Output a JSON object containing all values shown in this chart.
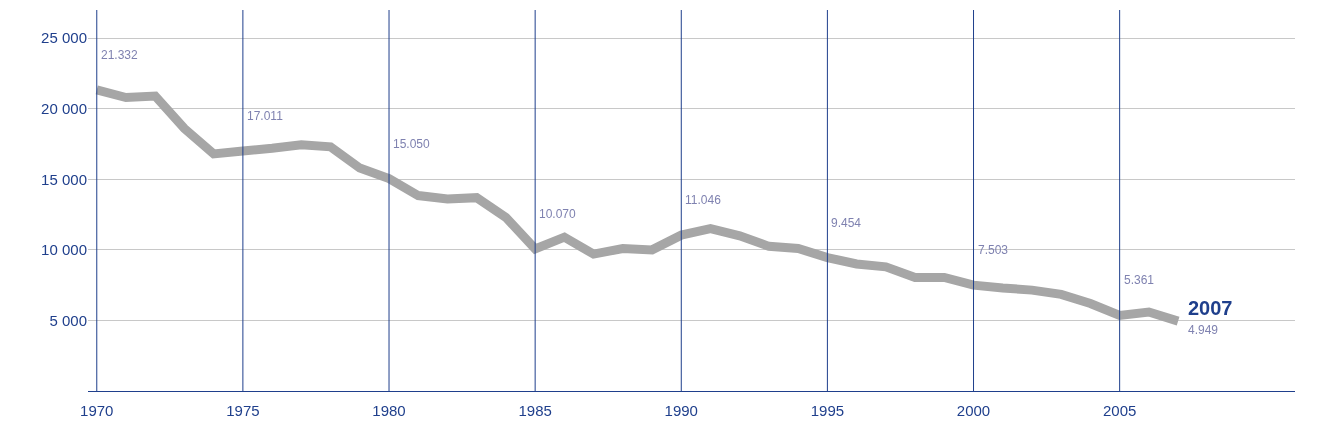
{
  "chart_data": {
    "type": "line",
    "x": [
      1970,
      1971,
      1972,
      1973,
      1974,
      1975,
      1976,
      1977,
      1978,
      1979,
      1980,
      1981,
      1982,
      1983,
      1984,
      1985,
      1986,
      1987,
      1988,
      1989,
      1990,
      1991,
      1992,
      1993,
      1994,
      1995,
      1996,
      1997,
      1998,
      1999,
      2000,
      2001,
      2002,
      2003,
      2004,
      2005,
      2006,
      2007
    ],
    "series": [
      {
        "color": "#a6a6a6",
        "value_labels": [
          "21.332",
          null,
          null,
          null,
          null,
          "17.011",
          null,
          null,
          null,
          null,
          "15.050",
          null,
          null,
          null,
          null,
          "10.070",
          null,
          null,
          null,
          null,
          "11.046",
          null,
          null,
          null,
          null,
          "9.454",
          null,
          null,
          null,
          null,
          "7.503",
          null,
          null,
          null,
          null,
          "5.361",
          null,
          "4.949"
        ],
        "values": [
          21332,
          20800,
          20900,
          18600,
          16800,
          17011,
          17200,
          17450,
          17300,
          15800,
          15050,
          13850,
          13600,
          13700,
          12300,
          10070,
          10900,
          9700,
          10100,
          10000,
          11046,
          11500,
          11000,
          10250,
          10100,
          9454,
          9000,
          8800,
          8050,
          8050,
          7503,
          7300,
          7150,
          6850,
          6200,
          5361,
          5600,
          4949
        ]
      }
    ],
    "xlim": [
      1969.7,
      2011
    ],
    "xticks": [
      1970,
      1975,
      1980,
      1985,
      1990,
      1995,
      2000,
      2005
    ],
    "ylim": [
      0,
      27000
    ],
    "yticks": [
      {
        "value": 5000,
        "label": "5 000"
      },
      {
        "value": 10000,
        "label": "10 000"
      },
      {
        "value": 15000,
        "label": "15 000"
      },
      {
        "value": 20000,
        "label": "20 000"
      },
      {
        "value": 25000,
        "label": "25 000"
      }
    ],
    "grid": "y",
    "marker": "none",
    "line_style": "solid",
    "ref_lines": [
      {
        "axis": "x",
        "value": 1970,
        "color": "#1f3f8c"
      },
      {
        "axis": "x",
        "value": 1975,
        "color": "#1f3f8c"
      },
      {
        "axis": "x",
        "value": 1980,
        "color": "#1f3f8c"
      },
      {
        "axis": "x",
        "value": 1985,
        "color": "#1f3f8c"
      },
      {
        "axis": "x",
        "value": 1990,
        "color": "#1f3f8c"
      },
      {
        "axis": "x",
        "value": 1995,
        "color": "#1f3f8c"
      },
      {
        "axis": "x",
        "value": 2000,
        "color": "#1f3f8c"
      },
      {
        "axis": "x",
        "value": 2005,
        "color": "#1f3f8c"
      }
    ],
    "annotations": [
      {
        "text": "2007",
        "x": 2007,
        "y": 4949
      }
    ]
  }
}
